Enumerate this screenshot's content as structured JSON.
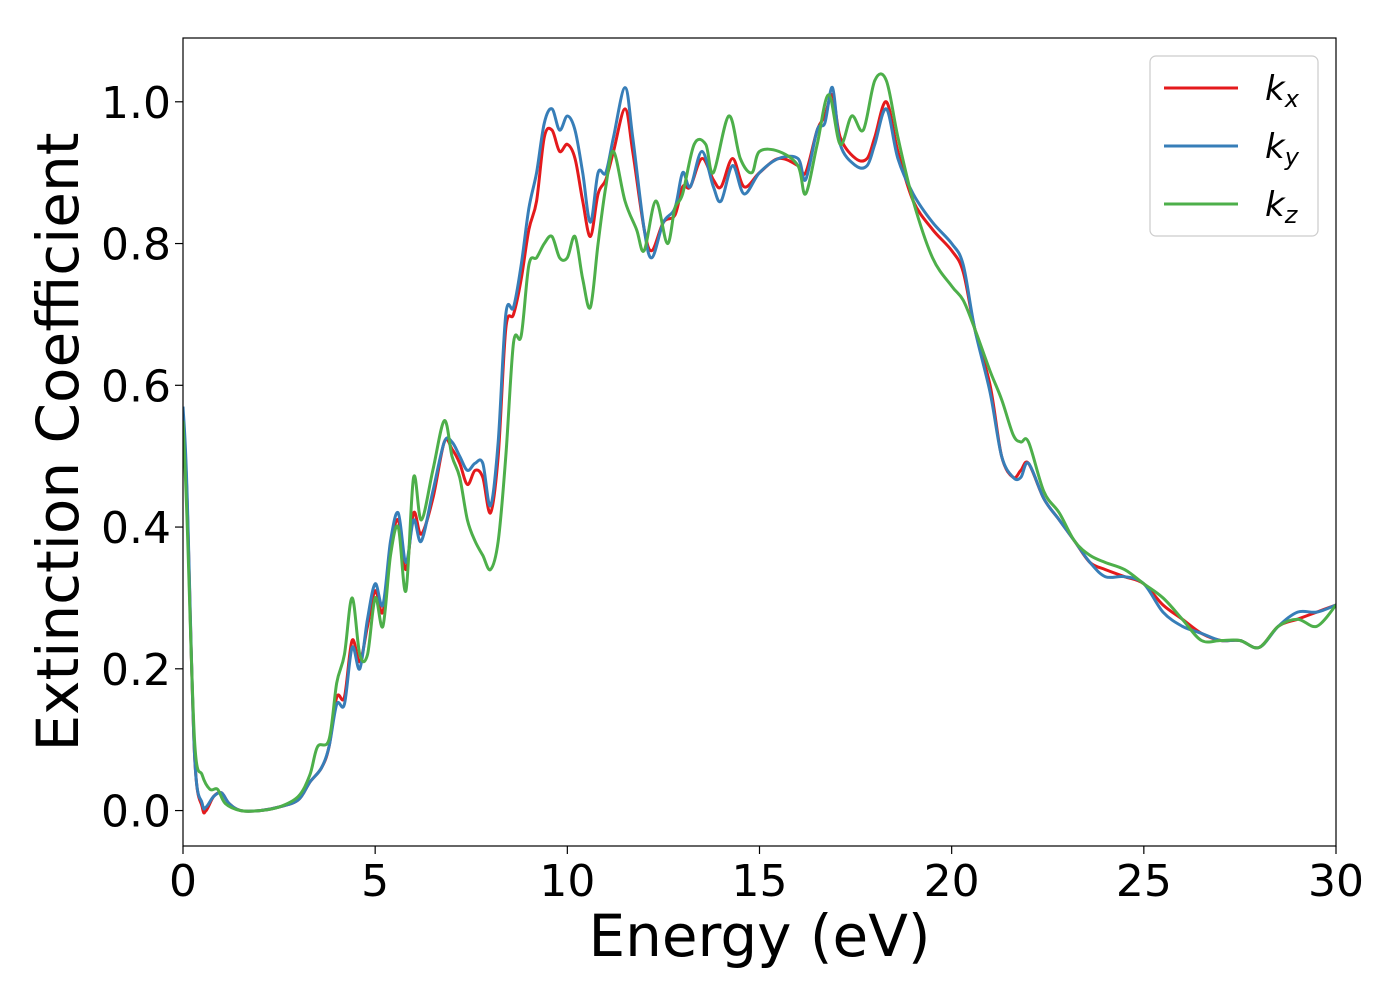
{
  "chart_data": {
    "type": "line",
    "xlabel": "Energy (eV)",
    "ylabel": "Extinction Coefficient",
    "xlim": [
      0,
      30
    ],
    "ylim": [
      -0.05,
      1.09
    ],
    "xticks": [
      0,
      5,
      10,
      15,
      20,
      25,
      30
    ],
    "yticks": [
      0.0,
      0.2,
      0.4,
      0.6,
      0.8,
      1.0
    ],
    "xtick_labels": [
      "0",
      "5",
      "10",
      "15",
      "20",
      "25",
      "30"
    ],
    "ytick_labels": [
      "0.0",
      "0.2",
      "0.4",
      "0.6",
      "0.8",
      "1.0"
    ],
    "grid": false,
    "legend_position": "top-right",
    "series": [
      {
        "name": "kx",
        "label_main": "k",
        "label_sub": "x",
        "color": "#e41a1c",
        "points": [
          [
            0,
            0.56
          ],
          [
            0.1,
            0.45
          ],
          [
            0.3,
            0.08
          ],
          [
            0.5,
            0.005
          ],
          [
            0.6,
            0.0
          ],
          [
            0.8,
            0.02
          ],
          [
            1.0,
            0.025
          ],
          [
            1.2,
            0.01
          ],
          [
            1.5,
            0.0
          ],
          [
            2.0,
            0.0
          ],
          [
            2.5,
            0.005
          ],
          [
            3.0,
            0.015
          ],
          [
            3.3,
            0.04
          ],
          [
            3.6,
            0.06
          ],
          [
            3.8,
            0.09
          ],
          [
            4.0,
            0.16
          ],
          [
            4.2,
            0.16
          ],
          [
            4.4,
            0.24
          ],
          [
            4.6,
            0.21
          ],
          [
            4.8,
            0.26
          ],
          [
            5.0,
            0.31
          ],
          [
            5.2,
            0.28
          ],
          [
            5.4,
            0.37
          ],
          [
            5.6,
            0.41
          ],
          [
            5.8,
            0.34
          ],
          [
            6.0,
            0.42
          ],
          [
            6.2,
            0.39
          ],
          [
            6.5,
            0.44
          ],
          [
            6.8,
            0.52
          ],
          [
            7.0,
            0.51
          ],
          [
            7.2,
            0.49
          ],
          [
            7.4,
            0.46
          ],
          [
            7.6,
            0.48
          ],
          [
            7.8,
            0.47
          ],
          [
            8.0,
            0.42
          ],
          [
            8.2,
            0.5
          ],
          [
            8.4,
            0.68
          ],
          [
            8.6,
            0.7
          ],
          [
            8.8,
            0.75
          ],
          [
            9.0,
            0.82
          ],
          [
            9.2,
            0.86
          ],
          [
            9.4,
            0.95
          ],
          [
            9.6,
            0.96
          ],
          [
            9.8,
            0.93
          ],
          [
            10.0,
            0.94
          ],
          [
            10.2,
            0.92
          ],
          [
            10.4,
            0.86
          ],
          [
            10.6,
            0.81
          ],
          [
            10.8,
            0.87
          ],
          [
            11.0,
            0.89
          ],
          [
            11.2,
            0.93
          ],
          [
            11.5,
            0.99
          ],
          [
            11.7,
            0.93
          ],
          [
            12.0,
            0.82
          ],
          [
            12.2,
            0.79
          ],
          [
            12.5,
            0.83
          ],
          [
            12.8,
            0.84
          ],
          [
            13.0,
            0.88
          ],
          [
            13.2,
            0.88
          ],
          [
            13.5,
            0.92
          ],
          [
            13.8,
            0.89
          ],
          [
            14.0,
            0.88
          ],
          [
            14.3,
            0.92
          ],
          [
            14.6,
            0.88
          ],
          [
            15.0,
            0.9
          ],
          [
            15.5,
            0.92
          ],
          [
            16.0,
            0.91
          ],
          [
            16.2,
            0.9
          ],
          [
            16.5,
            0.96
          ],
          [
            16.7,
            0.98
          ],
          [
            16.9,
            1.01
          ],
          [
            17.1,
            0.95
          ],
          [
            17.5,
            0.92
          ],
          [
            17.8,
            0.92
          ],
          [
            18.0,
            0.95
          ],
          [
            18.3,
            1.0
          ],
          [
            18.6,
            0.93
          ],
          [
            19.0,
            0.86
          ],
          [
            19.5,
            0.82
          ],
          [
            20.0,
            0.79
          ],
          [
            20.3,
            0.76
          ],
          [
            20.6,
            0.68
          ],
          [
            21.0,
            0.6
          ],
          [
            21.3,
            0.5
          ],
          [
            21.6,
            0.47
          ],
          [
            21.8,
            0.48
          ],
          [
            22.0,
            0.49
          ],
          [
            22.4,
            0.44
          ],
          [
            22.8,
            0.41
          ],
          [
            23.2,
            0.38
          ],
          [
            23.6,
            0.35
          ],
          [
            24.0,
            0.34
          ],
          [
            24.5,
            0.33
          ],
          [
            25.0,
            0.32
          ],
          [
            25.5,
            0.29
          ],
          [
            26.0,
            0.27
          ],
          [
            26.5,
            0.25
          ],
          [
            27.0,
            0.24
          ],
          [
            27.5,
            0.24
          ],
          [
            28.0,
            0.23
          ],
          [
            28.5,
            0.26
          ],
          [
            29.0,
            0.27
          ],
          [
            29.5,
            0.28
          ],
          [
            30.0,
            0.29
          ]
        ]
      },
      {
        "name": "ky",
        "label_main": "k",
        "label_sub": "y",
        "color": "#377eb8",
        "points": [
          [
            0,
            0.57
          ],
          [
            0.1,
            0.46
          ],
          [
            0.3,
            0.08
          ],
          [
            0.5,
            0.01
          ],
          [
            0.6,
            0.005
          ],
          [
            0.8,
            0.02
          ],
          [
            1.0,
            0.025
          ],
          [
            1.2,
            0.01
          ],
          [
            1.5,
            0.0
          ],
          [
            2.0,
            0.0
          ],
          [
            2.5,
            0.005
          ],
          [
            3.0,
            0.015
          ],
          [
            3.3,
            0.04
          ],
          [
            3.6,
            0.06
          ],
          [
            3.8,
            0.09
          ],
          [
            4.0,
            0.15
          ],
          [
            4.2,
            0.15
          ],
          [
            4.4,
            0.23
          ],
          [
            4.6,
            0.2
          ],
          [
            4.8,
            0.27
          ],
          [
            5.0,
            0.32
          ],
          [
            5.2,
            0.29
          ],
          [
            5.4,
            0.38
          ],
          [
            5.6,
            0.42
          ],
          [
            5.8,
            0.35
          ],
          [
            6.0,
            0.41
          ],
          [
            6.2,
            0.38
          ],
          [
            6.5,
            0.45
          ],
          [
            6.8,
            0.52
          ],
          [
            7.0,
            0.52
          ],
          [
            7.2,
            0.5
          ],
          [
            7.4,
            0.48
          ],
          [
            7.6,
            0.49
          ],
          [
            7.8,
            0.49
          ],
          [
            8.0,
            0.43
          ],
          [
            8.2,
            0.52
          ],
          [
            8.4,
            0.7
          ],
          [
            8.6,
            0.71
          ],
          [
            8.8,
            0.77
          ],
          [
            9.0,
            0.85
          ],
          [
            9.2,
            0.9
          ],
          [
            9.4,
            0.97
          ],
          [
            9.6,
            0.99
          ],
          [
            9.8,
            0.96
          ],
          [
            10.0,
            0.98
          ],
          [
            10.2,
            0.96
          ],
          [
            10.4,
            0.9
          ],
          [
            10.6,
            0.83
          ],
          [
            10.8,
            0.9
          ],
          [
            11.0,
            0.9
          ],
          [
            11.2,
            0.95
          ],
          [
            11.5,
            1.02
          ],
          [
            11.7,
            0.95
          ],
          [
            12.0,
            0.82
          ],
          [
            12.2,
            0.78
          ],
          [
            12.5,
            0.83
          ],
          [
            12.8,
            0.85
          ],
          [
            13.0,
            0.9
          ],
          [
            13.2,
            0.88
          ],
          [
            13.5,
            0.93
          ],
          [
            13.8,
            0.88
          ],
          [
            14.0,
            0.86
          ],
          [
            14.3,
            0.91
          ],
          [
            14.6,
            0.87
          ],
          [
            15.0,
            0.9
          ],
          [
            15.5,
            0.92
          ],
          [
            16.0,
            0.92
          ],
          [
            16.2,
            0.89
          ],
          [
            16.5,
            0.96
          ],
          [
            16.7,
            0.97
          ],
          [
            16.9,
            1.02
          ],
          [
            17.1,
            0.94
          ],
          [
            17.5,
            0.91
          ],
          [
            17.8,
            0.91
          ],
          [
            18.0,
            0.94
          ],
          [
            18.3,
            0.99
          ],
          [
            18.6,
            0.92
          ],
          [
            19.0,
            0.87
          ],
          [
            19.5,
            0.83
          ],
          [
            20.0,
            0.8
          ],
          [
            20.3,
            0.77
          ],
          [
            20.6,
            0.68
          ],
          [
            21.0,
            0.59
          ],
          [
            21.3,
            0.5
          ],
          [
            21.6,
            0.47
          ],
          [
            21.8,
            0.47
          ],
          [
            22.0,
            0.49
          ],
          [
            22.4,
            0.44
          ],
          [
            22.8,
            0.41
          ],
          [
            23.2,
            0.38
          ],
          [
            23.6,
            0.35
          ],
          [
            24.0,
            0.33
          ],
          [
            24.5,
            0.33
          ],
          [
            25.0,
            0.32
          ],
          [
            25.5,
            0.28
          ],
          [
            26.0,
            0.26
          ],
          [
            26.5,
            0.25
          ],
          [
            27.0,
            0.24
          ],
          [
            27.5,
            0.24
          ],
          [
            28.0,
            0.23
          ],
          [
            28.5,
            0.26
          ],
          [
            29.0,
            0.28
          ],
          [
            29.5,
            0.28
          ],
          [
            30.0,
            0.29
          ]
        ]
      },
      {
        "name": "kz",
        "label_main": "k",
        "label_sub": "z",
        "color": "#4daf4a",
        "points": [
          [
            0,
            0.55
          ],
          [
            0.1,
            0.42
          ],
          [
            0.3,
            0.1
          ],
          [
            0.5,
            0.05
          ],
          [
            0.7,
            0.03
          ],
          [
            0.9,
            0.03
          ],
          [
            1.1,
            0.01
          ],
          [
            1.5,
            0.0
          ],
          [
            2.0,
            0.0
          ],
          [
            2.5,
            0.005
          ],
          [
            3.0,
            0.02
          ],
          [
            3.3,
            0.05
          ],
          [
            3.5,
            0.09
          ],
          [
            3.8,
            0.1
          ],
          [
            4.0,
            0.18
          ],
          [
            4.2,
            0.22
          ],
          [
            4.4,
            0.3
          ],
          [
            4.6,
            0.22
          ],
          [
            4.8,
            0.22
          ],
          [
            5.0,
            0.3
          ],
          [
            5.2,
            0.26
          ],
          [
            5.4,
            0.36
          ],
          [
            5.6,
            0.4
          ],
          [
            5.8,
            0.31
          ],
          [
            6.0,
            0.47
          ],
          [
            6.2,
            0.41
          ],
          [
            6.5,
            0.48
          ],
          [
            6.8,
            0.55
          ],
          [
            7.0,
            0.5
          ],
          [
            7.2,
            0.47
          ],
          [
            7.4,
            0.41
          ],
          [
            7.6,
            0.38
          ],
          [
            7.8,
            0.36
          ],
          [
            8.0,
            0.34
          ],
          [
            8.2,
            0.38
          ],
          [
            8.4,
            0.5
          ],
          [
            8.6,
            0.66
          ],
          [
            8.8,
            0.67
          ],
          [
            9.0,
            0.77
          ],
          [
            9.2,
            0.78
          ],
          [
            9.4,
            0.8
          ],
          [
            9.6,
            0.81
          ],
          [
            9.8,
            0.78
          ],
          [
            10.0,
            0.78
          ],
          [
            10.2,
            0.81
          ],
          [
            10.4,
            0.75
          ],
          [
            10.6,
            0.71
          ],
          [
            10.8,
            0.8
          ],
          [
            11.0,
            0.88
          ],
          [
            11.2,
            0.93
          ],
          [
            11.5,
            0.86
          ],
          [
            11.8,
            0.82
          ],
          [
            12.0,
            0.79
          ],
          [
            12.3,
            0.86
          ],
          [
            12.6,
            0.8
          ],
          [
            12.8,
            0.85
          ],
          [
            13.0,
            0.87
          ],
          [
            13.3,
            0.94
          ],
          [
            13.6,
            0.94
          ],
          [
            13.8,
            0.9
          ],
          [
            14.2,
            0.98
          ],
          [
            14.5,
            0.92
          ],
          [
            14.8,
            0.9
          ],
          [
            15.0,
            0.93
          ],
          [
            15.5,
            0.93
          ],
          [
            16.0,
            0.91
          ],
          [
            16.2,
            0.87
          ],
          [
            16.5,
            0.94
          ],
          [
            16.8,
            1.01
          ],
          [
            17.1,
            0.94
          ],
          [
            17.4,
            0.98
          ],
          [
            17.7,
            0.96
          ],
          [
            18.0,
            1.03
          ],
          [
            18.3,
            1.03
          ],
          [
            18.6,
            0.95
          ],
          [
            19.0,
            0.86
          ],
          [
            19.5,
            0.78
          ],
          [
            20.0,
            0.74
          ],
          [
            20.3,
            0.72
          ],
          [
            20.6,
            0.68
          ],
          [
            21.0,
            0.62
          ],
          [
            21.3,
            0.58
          ],
          [
            21.6,
            0.53
          ],
          [
            21.8,
            0.52
          ],
          [
            22.0,
            0.52
          ],
          [
            22.4,
            0.45
          ],
          [
            22.8,
            0.42
          ],
          [
            23.2,
            0.38
          ],
          [
            23.6,
            0.36
          ],
          [
            24.0,
            0.35
          ],
          [
            24.5,
            0.34
          ],
          [
            25.0,
            0.32
          ],
          [
            25.5,
            0.3
          ],
          [
            26.0,
            0.27
          ],
          [
            26.5,
            0.24
          ],
          [
            27.0,
            0.24
          ],
          [
            27.5,
            0.24
          ],
          [
            28.0,
            0.23
          ],
          [
            28.5,
            0.26
          ],
          [
            29.0,
            0.27
          ],
          [
            29.5,
            0.26
          ],
          [
            30.0,
            0.29
          ]
        ]
      }
    ]
  }
}
